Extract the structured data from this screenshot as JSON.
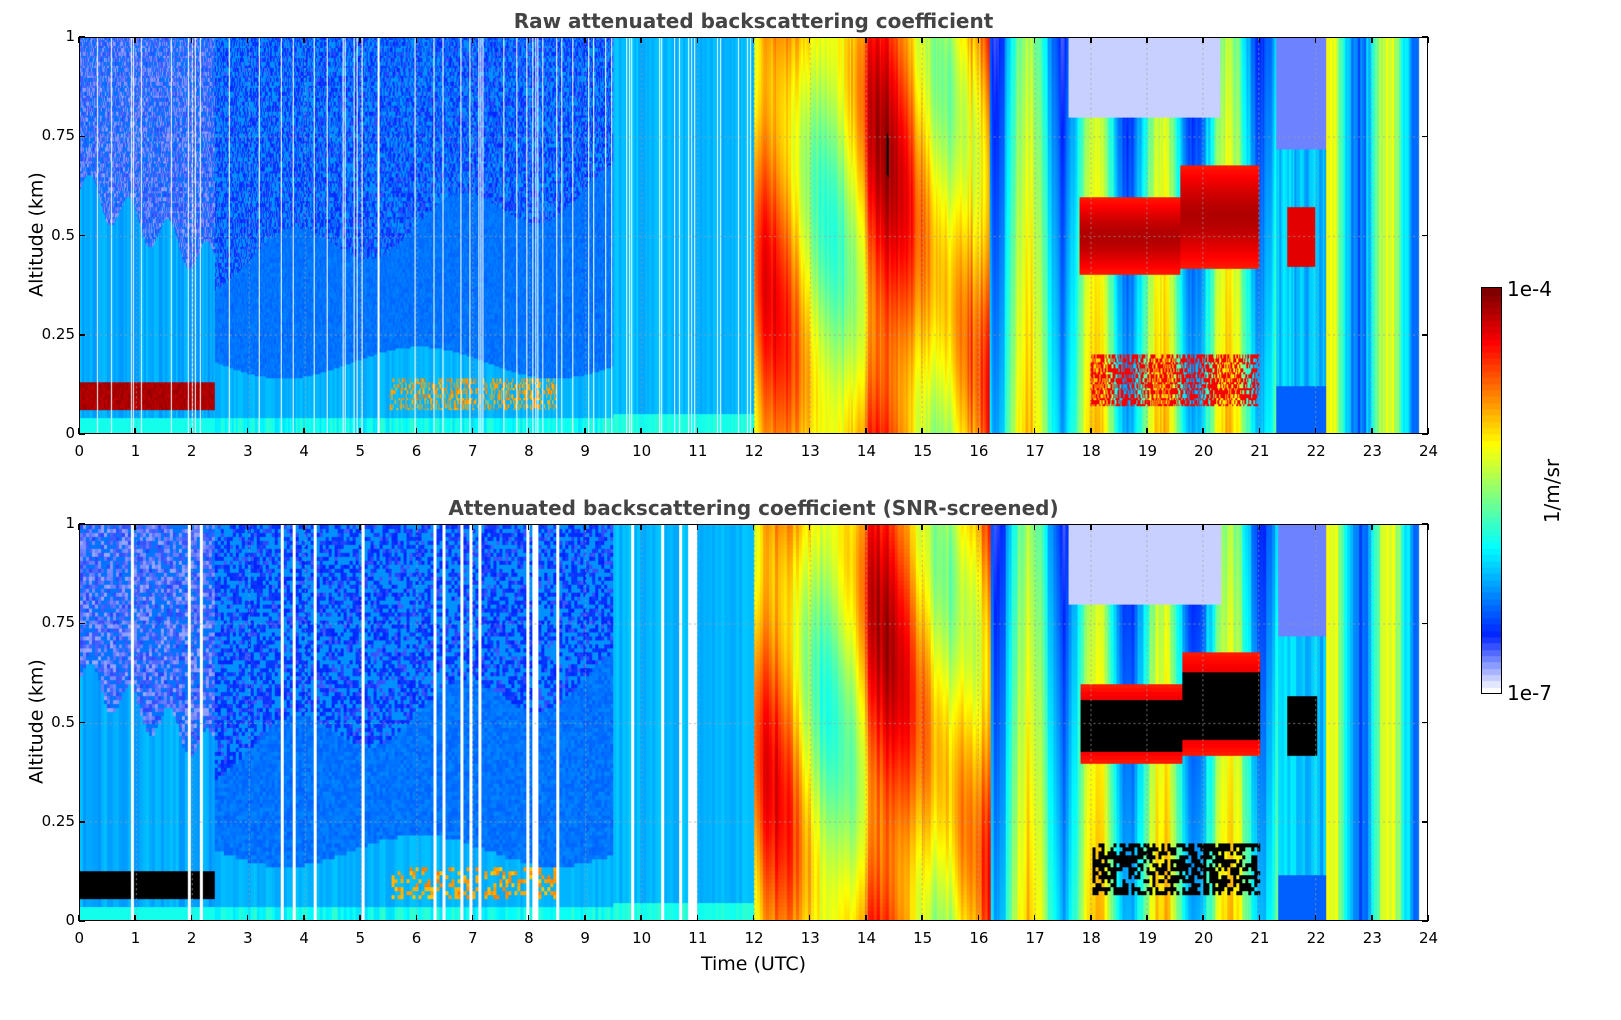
{
  "chart_data": [
    {
      "type": "heatmap",
      "title": "Raw attenuated backscattering coefficient",
      "xlabel": "",
      "ylabel": "Altitude (km)",
      "xlim": [
        0,
        24
      ],
      "ylim": [
        0,
        1
      ],
      "x_ticks": [
        "0",
        "1",
        "2",
        "3",
        "4",
        "5",
        "6",
        "7",
        "8",
        "9",
        "10",
        "11",
        "12",
        "13",
        "14",
        "15",
        "16",
        "17",
        "18",
        "19",
        "20",
        "21",
        "22",
        "23",
        "24"
      ],
      "y_ticks": [
        "0",
        "0.25",
        "0.5",
        "0.75",
        "1"
      ],
      "grid": true,
      "screened": false
    },
    {
      "type": "heatmap",
      "title": "Attenuated backscattering coefficient (SNR-screened)",
      "xlabel": "Time (UTC)",
      "ylabel": "Altitude (km)",
      "xlim": [
        0,
        24
      ],
      "ylim": [
        0,
        1
      ],
      "x_ticks": [
        "0",
        "1",
        "2",
        "3",
        "4",
        "5",
        "6",
        "7",
        "8",
        "9",
        "10",
        "11",
        "12",
        "13",
        "14",
        "15",
        "16",
        "17",
        "18",
        "19",
        "20",
        "21",
        "22",
        "23",
        "24"
      ],
      "y_ticks": [
        "0",
        "0.25",
        "0.5",
        "0.75",
        "1"
      ],
      "grid": true,
      "screened": true
    }
  ],
  "colorbar": {
    "label": "1/m/sr",
    "max_label": "1e-4",
    "min_label": "1e-7",
    "scale": "log",
    "colormap": "jet-with-white-low",
    "range": [
      1e-07,
      0.0001
    ],
    "low_color": "#ffffff",
    "high_color": "#7f0000",
    "screened_saturation_color": "#000000"
  }
}
